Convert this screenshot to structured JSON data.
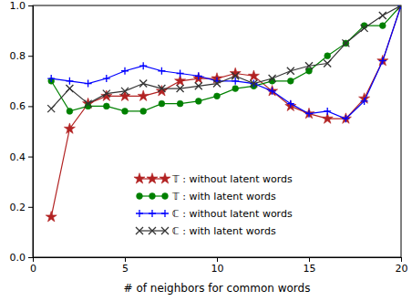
{
  "chart_data": {
    "type": "line",
    "x_label": "# of neighbors for common words",
    "x": [
      1,
      2,
      3,
      4,
      5,
      6,
      7,
      8,
      9,
      10,
      11,
      12,
      13,
      14,
      15,
      16,
      17,
      18,
      19,
      20
    ],
    "series": [
      {
        "name": "𝕋 : without latent words",
        "color": "#b22222",
        "marker": "star",
        "values": [
          0.16,
          0.51,
          0.61,
          0.64,
          0.64,
          0.64,
          0.66,
          0.7,
          0.71,
          0.71,
          0.73,
          0.72,
          0.66,
          0.6,
          0.57,
          0.55,
          0.55,
          0.63,
          0.78,
          1.0
        ]
      },
      {
        "name": "𝕋 : with latent words",
        "color": "#008000",
        "marker": "circle",
        "values": [
          0.7,
          0.58,
          0.6,
          0.6,
          0.58,
          0.58,
          0.61,
          0.61,
          0.62,
          0.64,
          0.67,
          0.68,
          0.7,
          0.7,
          0.74,
          0.8,
          0.85,
          0.92,
          0.92,
          1.0
        ]
      },
      {
        "name": "ℂ : without latent words",
        "color": "#0000ff",
        "marker": "plus",
        "values": [
          0.71,
          0.7,
          0.69,
          0.71,
          0.74,
          0.76,
          0.74,
          0.73,
          0.72,
          0.7,
          0.7,
          0.69,
          0.66,
          0.61,
          0.57,
          0.58,
          0.55,
          0.62,
          0.78,
          1.0
        ]
      },
      {
        "name": "ℂ : with latent words",
        "color": "#333333",
        "marker": "x",
        "values": [
          0.59,
          0.67,
          0.61,
          0.65,
          0.66,
          0.69,
          0.67,
          0.67,
          0.68,
          0.69,
          0.72,
          0.69,
          0.71,
          0.74,
          0.76,
          0.77,
          0.85,
          0.91,
          0.96,
          1.0
        ]
      }
    ],
    "xlim": [
      0,
      20
    ],
    "xticks": [
      0,
      5,
      10,
      15,
      20
    ],
    "ylim": [
      0,
      1
    ],
    "yticks": [
      {
        "value": 0,
        "label": "0.0"
      },
      0.2,
      0.4,
      0.6,
      0.8,
      {
        "value": 1,
        "label": "1.0"
      }
    ],
    "legend": "lower center"
  }
}
